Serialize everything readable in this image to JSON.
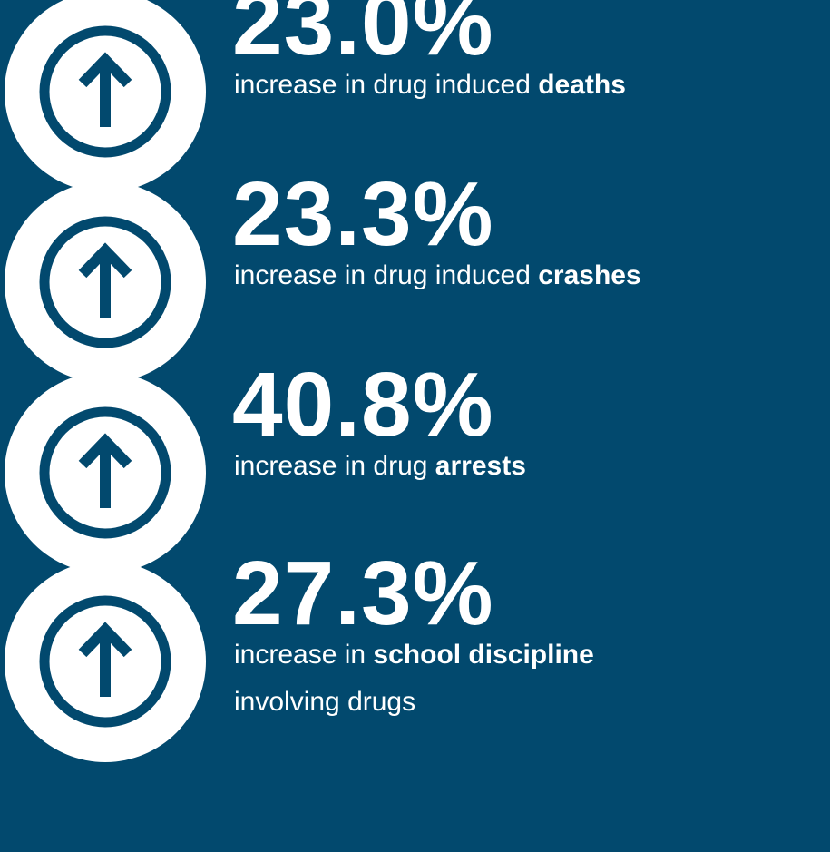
{
  "items": [
    {
      "stat": "23.0%",
      "lines": [
        [
          {
            "text": "increase in drug induced "
          },
          {
            "text": "deaths",
            "bold": true
          }
        ]
      ]
    },
    {
      "stat": "23.3%",
      "lines": [
        [
          {
            "text": "increase in drug induced "
          },
          {
            "text": "crashes",
            "bold": true
          }
        ]
      ]
    },
    {
      "stat": "40.8%",
      "lines": [
        [
          {
            "text": "increase in drug "
          },
          {
            "text": "arrests",
            "bold": true
          }
        ]
      ]
    },
    {
      "stat": "27.3%",
      "lines": [
        [
          {
            "text": "increase in "
          },
          {
            "text": "school discipline",
            "bold": true
          }
        ],
        [
          {
            "text": "involving drugs"
          }
        ]
      ]
    }
  ]
}
